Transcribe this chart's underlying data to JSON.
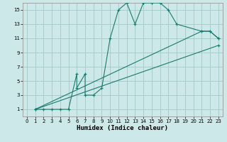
{
  "title": "",
  "xlabel": "Humidex (Indice chaleur)",
  "bg_color": "#cce8e8",
  "grid_color": "#aacccc",
  "line_color": "#1a7a6e",
  "xlim": [
    -0.5,
    23.5
  ],
  "ylim": [
    0,
    16
  ],
  "xticks": [
    0,
    1,
    2,
    3,
    4,
    5,
    6,
    7,
    8,
    9,
    10,
    11,
    12,
    13,
    14,
    15,
    16,
    17,
    18,
    19,
    20,
    21,
    22,
    23
  ],
  "yticks": [
    1,
    3,
    5,
    7,
    9,
    11,
    13,
    15
  ],
  "series": [
    {
      "x": [
        1,
        2,
        3,
        4,
        5,
        6,
        6,
        7,
        7,
        8,
        9,
        10,
        11,
        12,
        13,
        14,
        14,
        15,
        15,
        16,
        16,
        17,
        18,
        21,
        22,
        23
      ],
      "y": [
        1,
        1,
        1,
        1,
        1,
        6,
        4,
        6,
        3,
        3,
        4,
        11,
        15,
        16,
        13,
        16,
        16,
        16,
        16,
        16,
        16,
        15,
        13,
        12,
        12,
        11
      ]
    },
    {
      "x": [
        1,
        21,
        22,
        23
      ],
      "y": [
        1,
        12,
        12,
        11
      ]
    },
    {
      "x": [
        1,
        23
      ],
      "y": [
        1,
        10
      ]
    }
  ]
}
